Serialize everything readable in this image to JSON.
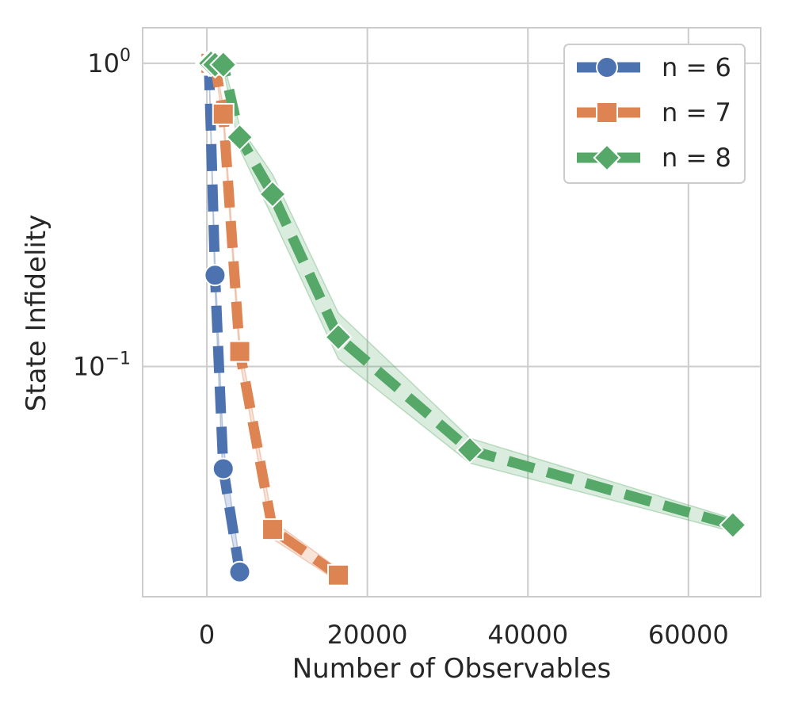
{
  "chart_data": {
    "type": "line",
    "title": "",
    "xlabel": "Number of Observables",
    "ylabel": "State Infidelity",
    "xscale": "linear",
    "yscale": "log",
    "xlim": [
      -8000,
      69000
    ],
    "ylim": [
      0.0174,
      1.31
    ],
    "xticks": [
      {
        "value": 0,
        "label": "0"
      },
      {
        "value": 20000,
        "label": "20000"
      },
      {
        "value": 40000,
        "label": "40000"
      },
      {
        "value": 60000,
        "label": "60000"
      }
    ],
    "yticks": [
      {
        "value": 1,
        "base": "10",
        "exp": "0"
      },
      {
        "value": 0.1,
        "base": "10",
        "exp": "−1"
      }
    ],
    "grid": true,
    "legend_position": "top-right",
    "series": [
      {
        "name": "n = 6",
        "label": "n = 6",
        "color": "#4c72b0",
        "marker": "circle",
        "x": [
          256,
          1024,
          2048,
          4096
        ],
        "y": [
          1.0,
          0.2,
          0.046,
          0.021
        ],
        "band_low": [
          0.98,
          0.18,
          0.039,
          0.0195
        ],
        "band_high": [
          1.02,
          0.22,
          0.055,
          0.0225
        ]
      },
      {
        "name": "n = 7",
        "label": "n = 7",
        "color": "#dd8452",
        "marker": "square",
        "x": [
          512,
          1024,
          2048,
          4096,
          8192,
          16384
        ],
        "y": [
          1.0,
          0.99,
          0.68,
          0.112,
          0.029,
          0.0205
        ],
        "band_low": [
          0.98,
          0.96,
          0.64,
          0.105,
          0.027,
          0.0195
        ],
        "band_high": [
          1.02,
          1.02,
          0.72,
          0.12,
          0.031,
          0.0215
        ]
      },
      {
        "name": "n = 8",
        "label": "n = 8",
        "color": "#55a868",
        "marker": "diamond",
        "x": [
          256,
          512,
          1024,
          2048,
          4096,
          8192,
          16384,
          32768,
          65536
        ],
        "y": [
          1.0,
          1.0,
          0.99,
          0.99,
          0.57,
          0.37,
          0.125,
          0.053,
          0.03
        ],
        "band_low": [
          0.98,
          0.98,
          0.97,
          0.96,
          0.52,
          0.31,
          0.106,
          0.048,
          0.0285
        ],
        "band_high": [
          1.02,
          1.02,
          1.01,
          1.02,
          0.62,
          0.43,
          0.15,
          0.058,
          0.0315
        ]
      }
    ]
  }
}
